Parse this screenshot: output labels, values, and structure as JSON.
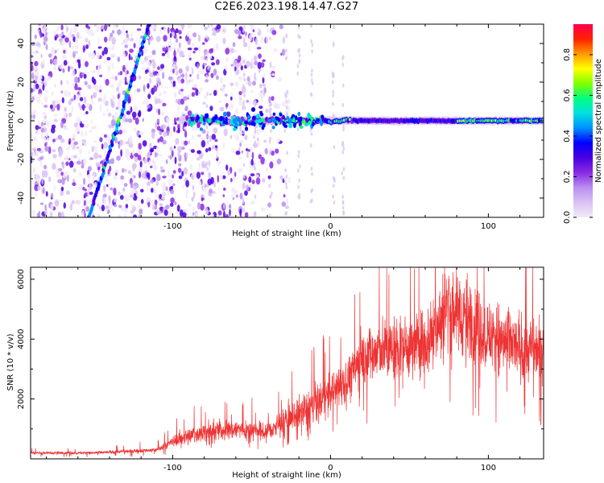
{
  "title": "C2E6.2023.198.14.47.G27",
  "chart_data": [
    {
      "type": "heatmap",
      "xlabel": "Height of straight line (km)",
      "ylabel": "Frequency (Hz)",
      "xlim": [
        -190,
        135
      ],
      "ylim": [
        -50,
        50
      ],
      "xticks": [
        -100,
        0,
        100
      ],
      "yticks": [
        -40,
        -20,
        0,
        20,
        40
      ],
      "grid": false,
      "colorbar": {
        "label": "Normalized spectral amplitude",
        "range": [
          0,
          0.95
        ],
        "ticks": [
          0.0,
          0.2,
          0.4,
          0.6,
          0.8
        ],
        "colors": [
          "#f4ecfb",
          "#c9a6f2",
          "#8a2be2",
          "#4b00e0",
          "#0000ff",
          "#00bfff",
          "#00ff80",
          "#7fff00",
          "#ffff00",
          "#ff8c00",
          "#ff0000",
          "#ff0050"
        ]
      },
      "features": {
        "carrier_line_hz": 0,
        "noise_region_x": [
          -190,
          -40
        ],
        "drifting_line": {
          "x": [
            -153,
            -115
          ],
          "y": [
            -50,
            50
          ]
        }
      }
    },
    {
      "type": "line",
      "xlabel": "Height of straight line (km)",
      "ylabel": "SNR (10 * v/v)",
      "xlim": [
        -190,
        135
      ],
      "ylim": [
        0,
        6400
      ],
      "xticks": [
        -100,
        0,
        100
      ],
      "yticks": [
        2000,
        4000,
        6000
      ],
      "color": "#ee3333",
      "grid": false,
      "trend": {
        "x": [
          -190,
          -150,
          -110,
          -95,
          -80,
          -60,
          -40,
          -25,
          -10,
          0,
          10,
          20,
          30,
          45,
          60,
          70,
          75,
          85,
          95,
          105,
          115,
          125,
          135
        ],
        "y": [
          200,
          200,
          300,
          700,
          900,
          1000,
          900,
          1400,
          1800,
          2200,
          2600,
          3400,
          3600,
          3700,
          3900,
          4600,
          5200,
          4700,
          4300,
          4000,
          3800,
          3600,
          3700
        ]
      }
    }
  ]
}
